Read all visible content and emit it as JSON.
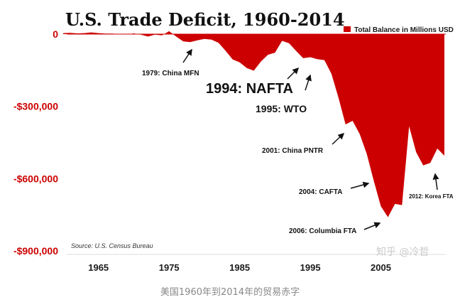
{
  "chart_data": {
    "type": "area",
    "title": "U.S. Trade Deficit, 1960-2014",
    "legend": {
      "label": "Total Balance in Millions USD",
      "color": "#cc0000",
      "placement": "top-right"
    },
    "xlabel": "",
    "ylabel": "",
    "xlim": [
      1960,
      2014
    ],
    "ylim": [
      -950000,
      10000
    ],
    "x_ticks": [
      {
        "value": 1965,
        "label": "1965"
      },
      {
        "value": 1975,
        "label": "1975"
      },
      {
        "value": 1985,
        "label": "1985"
      },
      {
        "value": 1995,
        "label": "1995"
      },
      {
        "value": 2005,
        "label": "2005"
      }
    ],
    "y_ticks": [
      {
        "value": 0,
        "label": "0"
      },
      {
        "value": -300000,
        "label": "-$300,000"
      },
      {
        "value": -600000,
        "label": "-$600,000"
      },
      {
        "value": -900000,
        "label": "-$900,000"
      }
    ],
    "series": [
      {
        "name": "Total Balance in Millions USD",
        "x": [
          1960,
          1961,
          1962,
          1963,
          1964,
          1965,
          1966,
          1967,
          1968,
          1969,
          1970,
          1971,
          1972,
          1973,
          1974,
          1975,
          1976,
          1977,
          1978,
          1979,
          1980,
          1981,
          1982,
          1983,
          1984,
          1985,
          1986,
          1987,
          1988,
          1989,
          1990,
          1991,
          1992,
          1993,
          1994,
          1995,
          1996,
          1997,
          1998,
          1999,
          2000,
          2001,
          2002,
          2003,
          2004,
          2005,
          2006,
          2007,
          2008,
          2009,
          2010,
          2011,
          2012,
          2013,
          2014
        ],
        "values": [
          4000,
          5000,
          3000,
          4000,
          7000,
          4000,
          2000,
          2000,
          -1000,
          -1000,
          3000,
          -2000,
          -10000,
          -2000,
          -5000,
          12000,
          -10000,
          -30000,
          -33000,
          -26000,
          -20000,
          -23000,
          -36000,
          -69000,
          -105000,
          -117000,
          -141000,
          -152000,
          -114000,
          -86000,
          -77000,
          -28000,
          -38000,
          -70000,
          -100000,
          -96000,
          -104000,
          -108000,
          -165000,
          -264000,
          -375000,
          -360000,
          -415000,
          -497000,
          -610000,
          -715000,
          -760000,
          -705000,
          -710000,
          -383000,
          -490000,
          -545000,
          -535000,
          -475000,
          -505000
        ]
      }
    ],
    "annotations": [
      {
        "label": "1979: China MFN",
        "style": "sm"
      },
      {
        "label": "1994: NAFTA",
        "style": "lg"
      },
      {
        "label": "1995: WTO",
        "style": "md"
      },
      {
        "label": "2001: China PNTR",
        "style": "sm"
      },
      {
        "label": "2004: CAFTA",
        "style": "sm"
      },
      {
        "label": "2006: Columbia FTA",
        "style": "sm"
      },
      {
        "label": "2012: Korea FTA",
        "style": "sm"
      }
    ],
    "source": "Source: U.S. Census Bureau",
    "grid": false
  },
  "watermark": "知乎 @冷哲",
  "caption": "美国1960年到2014年的贸易赤字"
}
